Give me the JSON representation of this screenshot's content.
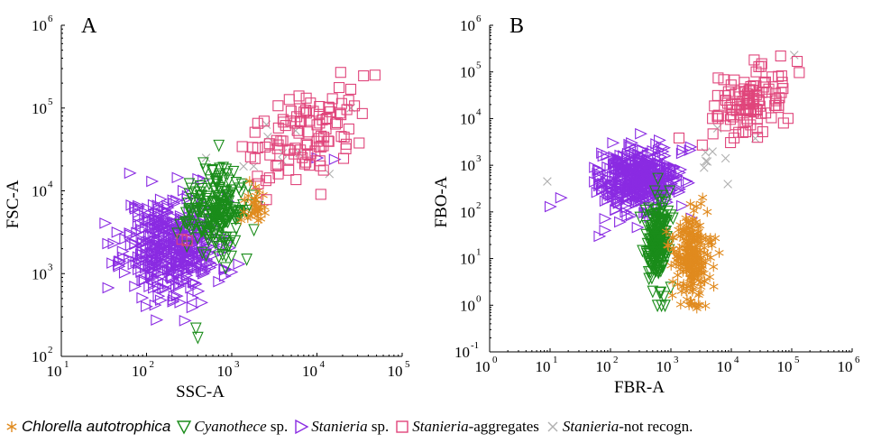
{
  "chart_data": [
    {
      "type": "scatter",
      "panel_label": "A",
      "xlabel": "SSC-A",
      "ylabel": "FSC-A",
      "xscale": "log",
      "yscale": "log",
      "xlim": [
        10,
        100000
      ],
      "ylim": [
        100,
        1000000
      ],
      "x_tick_labels": [
        "10",
        "10",
        "10",
        "10",
        "10"
      ],
      "x_tick_exponents": [
        "1",
        "2",
        "3",
        "4",
        "5"
      ],
      "x_ticks": [
        10,
        100,
        1000,
        10000,
        100000
      ],
      "y_tick_labels": [
        "10",
        "10",
        "10",
        "10",
        "10"
      ],
      "y_tick_exponents": [
        "2",
        "3",
        "4",
        "5",
        "6"
      ],
      "y_ticks": [
        100,
        1000,
        10000,
        100000,
        1000000
      ],
      "series": [
        {
          "name": "Stanieria sp.",
          "cluster": {
            "x_center": 200,
            "y_center": 2200,
            "spread_log_x": 0.28,
            "spread_log_y": 0.3,
            "count": 420
          },
          "outliers": [
            [
              35,
              2300
            ],
            [
              280,
              270
            ],
            [
              10000,
              25000
            ],
            [
              16000,
              24000
            ],
            [
              700,
              800
            ],
            [
              400,
              14000
            ]
          ]
        },
        {
          "name": "Cyanothece sp.",
          "cluster": {
            "x_center": 650,
            "y_center": 6000,
            "spread_log_x": 0.16,
            "spread_log_y": 0.25,
            "count": 200
          },
          "outliers": [
            [
              380,
              220
            ],
            [
              400,
              170
            ],
            [
              1500,
              1500
            ],
            [
              600,
              18000
            ]
          ]
        },
        {
          "name": "Chlorella autotrophica",
          "cluster": {
            "x_center": 1800,
            "y_center": 7000,
            "spread_log_x": 0.08,
            "spread_log_y": 0.12,
            "count": 30
          },
          "outliers": []
        },
        {
          "name": "Stanieria-aggregates",
          "cluster": {
            "x_center": 7000,
            "y_center": 50000,
            "spread_log_x": 0.3,
            "spread_log_y": 0.28,
            "count": 110
          },
          "outliers": [
            [
              48000,
              250000
            ],
            [
              260,
              2600
            ],
            [
              300,
              2500
            ],
            [
              2000,
              15000
            ]
          ]
        },
        {
          "name": "Stanieria-not recogn.",
          "cluster": {
            "x_center": 3000,
            "y_center": 30000,
            "spread_log_x": 0.25,
            "spread_log_y": 0.25,
            "count": 8
          },
          "outliers": [
            [
              14000,
              16000
            ],
            [
              500,
              25000
            ],
            [
              25000,
              100000
            ]
          ]
        }
      ]
    },
    {
      "type": "scatter",
      "panel_label": "B",
      "xlabel": "FBR-A",
      "ylabel": "FBO-A",
      "xscale": "log",
      "yscale": "log",
      "xlim": [
        1,
        1000000
      ],
      "ylim": [
        0.1,
        1000000
      ],
      "x_tick_labels": [
        "10",
        "10",
        "10",
        "10",
        "10",
        "10",
        "10"
      ],
      "x_tick_exponents": [
        "0",
        "1",
        "2",
        "3",
        "4",
        "5",
        "6"
      ],
      "x_ticks": [
        1,
        10,
        100,
        1000,
        10000,
        100000,
        1000000
      ],
      "y_tick_labels": [
        "10",
        "10",
        "10",
        "10",
        "10",
        "10",
        "10",
        "10"
      ],
      "y_tick_exponents": [
        "-1",
        "0",
        "1",
        "2",
        "3",
        "4",
        "5",
        "6"
      ],
      "y_ticks": [
        0.1,
        1,
        10,
        100,
        1000,
        10000,
        100000,
        1000000
      ],
      "series": [
        {
          "name": "Stanieria sp.",
          "cluster": {
            "x_center": 300,
            "y_center": 500,
            "spread_log_x": 0.35,
            "spread_log_y": 0.35,
            "count": 420
          },
          "outliers": [
            [
              10,
              130
            ],
            [
              15,
              200
            ],
            [
              65,
              30
            ],
            [
              80,
              40
            ],
            [
              700,
              2500
            ]
          ]
        },
        {
          "name": "Cyanothece sp.",
          "cluster": {
            "x_center": 600,
            "y_center": 25,
            "spread_log_x": 0.1,
            "spread_log_y": 0.4,
            "count": 200
          },
          "outliers": [
            [
              600,
              1
            ],
            [
              700,
              1
            ],
            [
              500,
              2
            ],
            [
              800,
              1
            ]
          ]
        },
        {
          "name": "Chlorella autotrophica",
          "cluster": {
            "x_center": 2200,
            "y_center": 12,
            "spread_log_x": 0.15,
            "spread_log_y": 0.45,
            "count": 220
          },
          "outliers": [
            [
              2000,
              1
            ],
            [
              2500,
              1
            ],
            [
              3000,
              1
            ],
            [
              4000,
              100
            ],
            [
              1500,
              2
            ],
            [
              1800,
              2
            ]
          ]
        },
        {
          "name": "Stanieria-aggregates",
          "cluster": {
            "x_center": 20000,
            "y_center": 20000,
            "spread_log_x": 0.35,
            "spread_log_y": 0.35,
            "count": 110
          },
          "outliers": [
            [
              70000,
              60000
            ],
            [
              60000,
              80000
            ],
            [
              8000,
              7000
            ]
          ]
        },
        {
          "name": "Stanieria-not recogn.",
          "cluster": {
            "x_center": 3000,
            "y_center": 1500,
            "spread_log_x": 0.3,
            "spread_log_y": 0.3,
            "count": 8
          },
          "outliers": [
            [
              9,
              450
            ],
            [
              110000,
              230000
            ],
            [
              4000,
              1200
            ]
          ]
        }
      ]
    }
  ],
  "legend": {
    "items": [
      {
        "id": "chlorella",
        "marker": "asterisk",
        "color": "#e08a1e",
        "text_italic": "Chlorella autotrophica",
        "text_plain": ""
      },
      {
        "id": "cyanothece",
        "marker": "triangle-down",
        "color": "#1a8c1a",
        "text_italic": "Cyanothece",
        "text_plain": " sp."
      },
      {
        "id": "stanieria",
        "marker": "triangle-right",
        "color": "#8a2be2",
        "text_italic": "Stanieria",
        "text_plain": " sp."
      },
      {
        "id": "aggregates",
        "marker": "square",
        "color": "#e0457b",
        "text_italic": "Stanieria",
        "text_plain": "-aggregates"
      },
      {
        "id": "notrecogn",
        "marker": "x",
        "color": "#b0b0b0",
        "text_italic": "Stanieria",
        "text_plain": "-not recogn."
      }
    ]
  },
  "colors": {
    "Chlorella autotrophica": "#e08a1e",
    "Cyanothece sp.": "#1a8c1a",
    "Stanieria sp.": "#8a2be2",
    "Stanieria-aggregates": "#e0457b",
    "Stanieria-not recogn.": "#b0b0b0"
  },
  "markers": {
    "Chlorella autotrophica": "asterisk",
    "Cyanothece sp.": "triangle-down",
    "Stanieria sp.": "triangle-right",
    "Stanieria-aggregates": "square",
    "Stanieria-not recogn.": "x"
  },
  "draw_order": [
    "Stanieria-not recogn.",
    "Stanieria sp.",
    "Cyanothece sp.",
    "Chlorella autotrophica",
    "Stanieria-aggregates"
  ]
}
